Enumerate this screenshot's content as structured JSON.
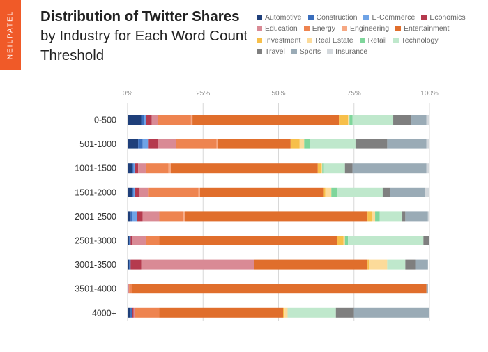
{
  "brand": "NEILPATEL",
  "colors": {
    "brand_orange": "#f05a28",
    "grid": "#d8d8d8",
    "axis": "#cfcfcf"
  },
  "chart_data": {
    "type": "bar",
    "orientation": "horizontal",
    "stacked": true,
    "title_bold": "Distribution of Twitter Shares",
    "title_rest": " by Industry for Each Word Count Threshold",
    "xlabel": "",
    "ylabel": "",
    "xlim": [
      0,
      100
    ],
    "x_ticks": [
      "0%",
      "25%",
      "50%",
      "75%",
      "100%"
    ],
    "grid": true,
    "legend_position": "top-right",
    "categories": [
      "0-500",
      "501-1000",
      "1001-1500",
      "1501-2000",
      "2001-2500",
      "2501-3000",
      "3001-3500",
      "3501-4000",
      "4000+"
    ],
    "series": [
      {
        "name": "Automotive",
        "color": "#1f3f7a",
        "values": [
          4.5,
          3.5,
          1.5,
          1.5,
          1.0,
          0.5,
          0.5,
          0.0,
          1.0
        ]
      },
      {
        "name": "Construction",
        "color": "#3a6ebd",
        "values": [
          1.0,
          1.5,
          0.5,
          0.5,
          0.5,
          0.5,
          0.5,
          0.0,
          0.5
        ]
      },
      {
        "name": "E-Commerce",
        "color": "#6fa3e6",
        "values": [
          0.5,
          2.0,
          0.5,
          0.5,
          1.5,
          0.0,
          0.0,
          0.0,
          0.0
        ]
      },
      {
        "name": "Economics",
        "color": "#b53a4e",
        "values": [
          2.0,
          3.0,
          1.0,
          1.5,
          2.0,
          0.5,
          3.5,
          0.0,
          0.5
        ]
      },
      {
        "name": "Education",
        "color": "#d98a95",
        "values": [
          2.0,
          6.0,
          2.5,
          3.0,
          5.5,
          4.5,
          37.5,
          0.5,
          0.5
        ]
      },
      {
        "name": "Energy",
        "color": "#ee8450",
        "values": [
          11.0,
          13.5,
          7.5,
          16.5,
          8.0,
          4.5,
          0.0,
          1.0,
          8.0
        ]
      },
      {
        "name": "Engineering",
        "color": "#f6a883",
        "values": [
          0.5,
          0.5,
          1.0,
          0.5,
          0.5,
          0.0,
          0.0,
          0.0,
          0.0
        ]
      },
      {
        "name": "Entertainment",
        "color": "#e06e2c",
        "values": [
          48.5,
          24.0,
          48.5,
          41.0,
          60.5,
          59.0,
          37.5,
          97.5,
          41.0
        ]
      },
      {
        "name": "Investment",
        "color": "#f7bf4a",
        "values": [
          3.0,
          3.0,
          1.0,
          0.5,
          1.5,
          2.0,
          0.5,
          0.0,
          0.5
        ]
      },
      {
        "name": "Real Estate",
        "color": "#fcdb9a",
        "values": [
          0.5,
          1.5,
          0.5,
          2.0,
          1.0,
          0.5,
          6.0,
          0.0,
          1.0
        ]
      },
      {
        "name": "Retail",
        "color": "#7fd69b",
        "values": [
          1.0,
          2.0,
          0.5,
          2.0,
          1.5,
          1.0,
          0.0,
          0.0,
          0.0
        ]
      },
      {
        "name": "Technology",
        "color": "#bfe8cc",
        "values": [
          13.5,
          15.0,
          7.0,
          15.0,
          7.5,
          25.0,
          6.0,
          0.0,
          16.0
        ]
      },
      {
        "name": "Travel",
        "color": "#7f7f7f",
        "values": [
          6.0,
          10.5,
          2.5,
          2.5,
          1.0,
          2.0,
          3.5,
          0.0,
          6.0
        ]
      },
      {
        "name": "Sports",
        "color": "#9aabb6",
        "values": [
          5.0,
          13.0,
          24.5,
          11.5,
          7.5,
          0.0,
          4.0,
          0.5,
          25.0
        ]
      },
      {
        "name": "Insurance",
        "color": "#d3d8dc",
        "values": [
          1.0,
          1.0,
          1.0,
          1.5,
          0.5,
          0.0,
          0.0,
          0.0,
          0.0
        ]
      }
    ]
  }
}
